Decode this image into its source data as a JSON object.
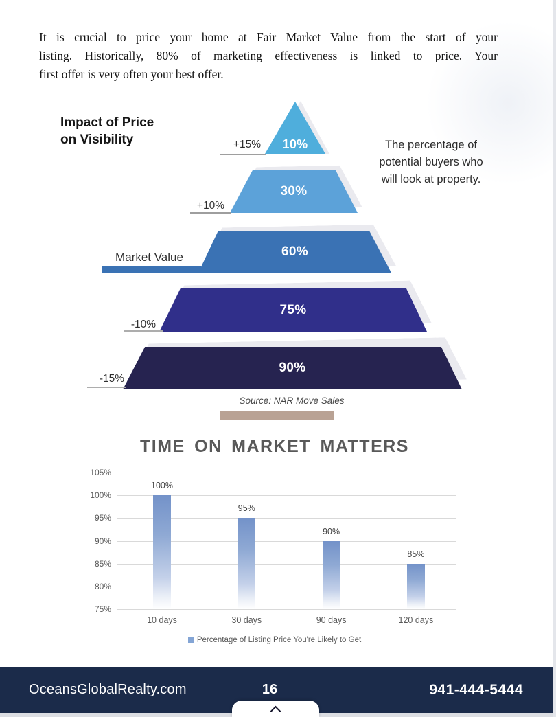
{
  "intro": {
    "line1": "It is crucial to price your home at Fair Market Value from the start of your",
    "line2": "listing. Historically, 80% of marketing effectiveness is linked to price. Your",
    "line3": "first offer is very often your best offer."
  },
  "pyramid": {
    "heading_line1": "Impact of Price",
    "heading_line2": "on Visibility",
    "caption_line1": "The percentage of",
    "caption_line2": "potential buyers who",
    "caption_line3": "will look at property.",
    "levels": [
      {
        "label": "+15%",
        "value": "10%",
        "color": "#4FAEDC"
      },
      {
        "label": "+10%",
        "value": "30%",
        "color": "#5CA2D9"
      },
      {
        "label": "Market Value",
        "value": "60%",
        "color": "#3A72B4"
      },
      {
        "label": "-10%",
        "value": "75%",
        "color": "#302F8A"
      },
      {
        "label": "-15%",
        "value": "90%",
        "color": "#262350"
      }
    ],
    "source": "Source: NAR Move Sales"
  },
  "chart_data": {
    "type": "bar",
    "title": "TIME ON MARKET MATTERS",
    "categories": [
      "10 days",
      "30 days",
      "90 days",
      "120 days"
    ],
    "values": [
      100,
      95,
      90,
      85
    ],
    "value_labels": [
      "100%",
      "95%",
      "90%",
      "85%"
    ],
    "xlabel": "",
    "ylabel": "",
    "ylim": [
      75,
      105
    ],
    "yticks": [
      105,
      100,
      95,
      90,
      85,
      80,
      75
    ],
    "ytick_labels": [
      "105%",
      "100%",
      "95%",
      "90%",
      "85%",
      "80%",
      "75%"
    ],
    "grid": true,
    "legend": {
      "label": "Percentage of Listing Price You're Likely to Get",
      "position": "bottom",
      "marker_color": "#84A5D5"
    },
    "bar_gradient_top": "#7392C9",
    "bar_gradient_bottom": "#FFFFFF"
  },
  "footer": {
    "website": "OceansGlobalRealty.com",
    "page_number": "16",
    "phone": "941-444-5444",
    "bg_color": "#1B2B4A"
  }
}
